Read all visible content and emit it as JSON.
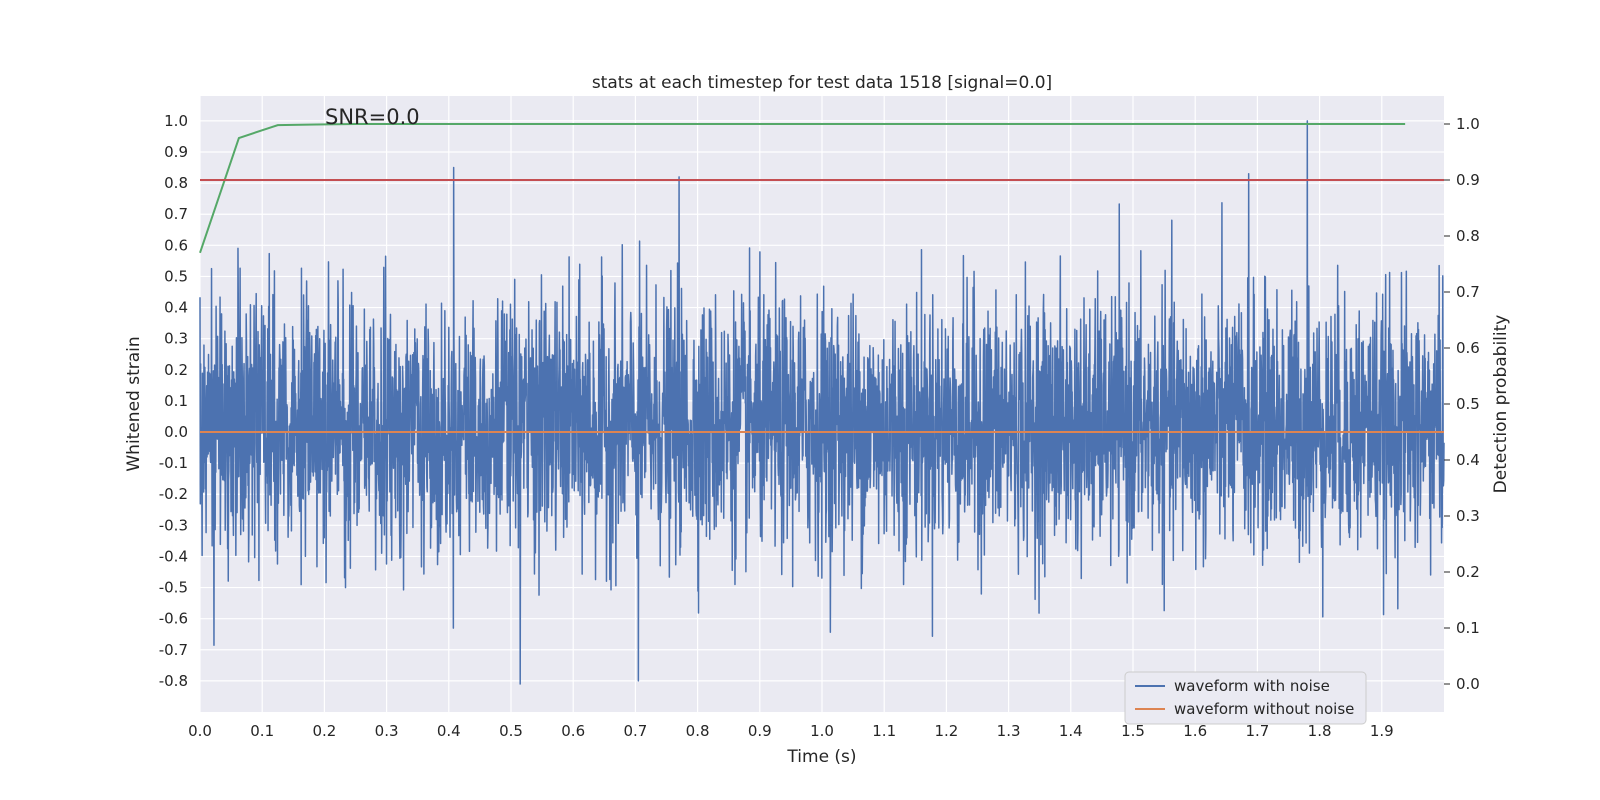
{
  "chart_data": {
    "type": "line",
    "title": "stats at each timestep for test data 1518 [signal=0.0]",
    "xlabel": "Time (s)",
    "ylabel": "Whitened strain",
    "ylabel_right": "Detection probability",
    "xlim": [
      0.0,
      2.0
    ],
    "ylim": [
      -0.9,
      1.08
    ],
    "ylim_right": [
      -0.05,
      1.05
    ],
    "grid": true,
    "legend_location": "lower right",
    "x_ticks": [
      "0.0",
      "0.1",
      "0.2",
      "0.3",
      "0.4",
      "0.5",
      "0.6",
      "0.7",
      "0.8",
      "0.9",
      "1.0",
      "1.1",
      "1.2",
      "1.3",
      "1.4",
      "1.5",
      "1.6",
      "1.7",
      "1.8",
      "1.9"
    ],
    "y_ticks": [
      "-0.8",
      "-0.7",
      "-0.6",
      "-0.5",
      "-0.4",
      "-0.3",
      "-0.2",
      "-0.1",
      "0.0",
      "0.1",
      "0.2",
      "0.3",
      "0.4",
      "0.5",
      "0.6",
      "0.7",
      "0.8",
      "0.9",
      "1.0"
    ],
    "y_ticks_right": [
      "0.0",
      "0.1",
      "0.2",
      "0.3",
      "0.4",
      "0.5",
      "0.6",
      "0.7",
      "0.8",
      "0.9",
      "1.0"
    ],
    "annotation": {
      "text": "SNR=0.0",
      "x": 0.2,
      "y": 1.02
    },
    "series": [
      {
        "name": "waveform with noise",
        "axis": "left",
        "color": "#4c72b0",
        "description": "whitened strain noise sampled over 0-2 s, values mostly between -0.8 and 1.0",
        "n_points": 4096,
        "range": [
          -0.81,
          1.0
        ],
        "notable_peaks": [
          {
            "x": 0.408,
            "y": 0.85
          },
          {
            "x": 0.77,
            "y": 0.82
          },
          {
            "x": 1.686,
            "y": 0.83
          },
          {
            "x": 1.78,
            "y": 1.0
          },
          {
            "x": 0.515,
            "y": -0.81
          },
          {
            "x": 0.705,
            "y": -0.8
          }
        ]
      },
      {
        "name": "waveform without noise",
        "axis": "left",
        "color": "#dd8452",
        "x": [
          0.0,
          2.0
        ],
        "values": [
          0.0,
          0.0
        ]
      },
      {
        "name": "detection probability",
        "axis": "right",
        "color": "#55a868",
        "x": [
          0.0,
          0.0625,
          0.125,
          0.1875,
          0.25,
          0.5,
          1.0,
          1.5,
          1.9375
        ],
        "values": [
          0.77,
          0.975,
          0.998,
          0.999,
          1.0,
          1.0,
          1.0,
          1.0,
          1.0
        ]
      },
      {
        "name": "threshold",
        "axis": "right",
        "color": "#c44e52",
        "x": [
          0.0,
          2.0
        ],
        "values": [
          0.9,
          0.9
        ]
      }
    ],
    "legend": [
      "waveform with noise",
      "waveform without noise"
    ]
  },
  "colors": {
    "plot_bg": "#eaeaf2",
    "grid": "#ffffff",
    "noise": "#4c72b0",
    "clean": "#dd8452",
    "prob": "#55a868",
    "threshold": "#c44e52"
  }
}
